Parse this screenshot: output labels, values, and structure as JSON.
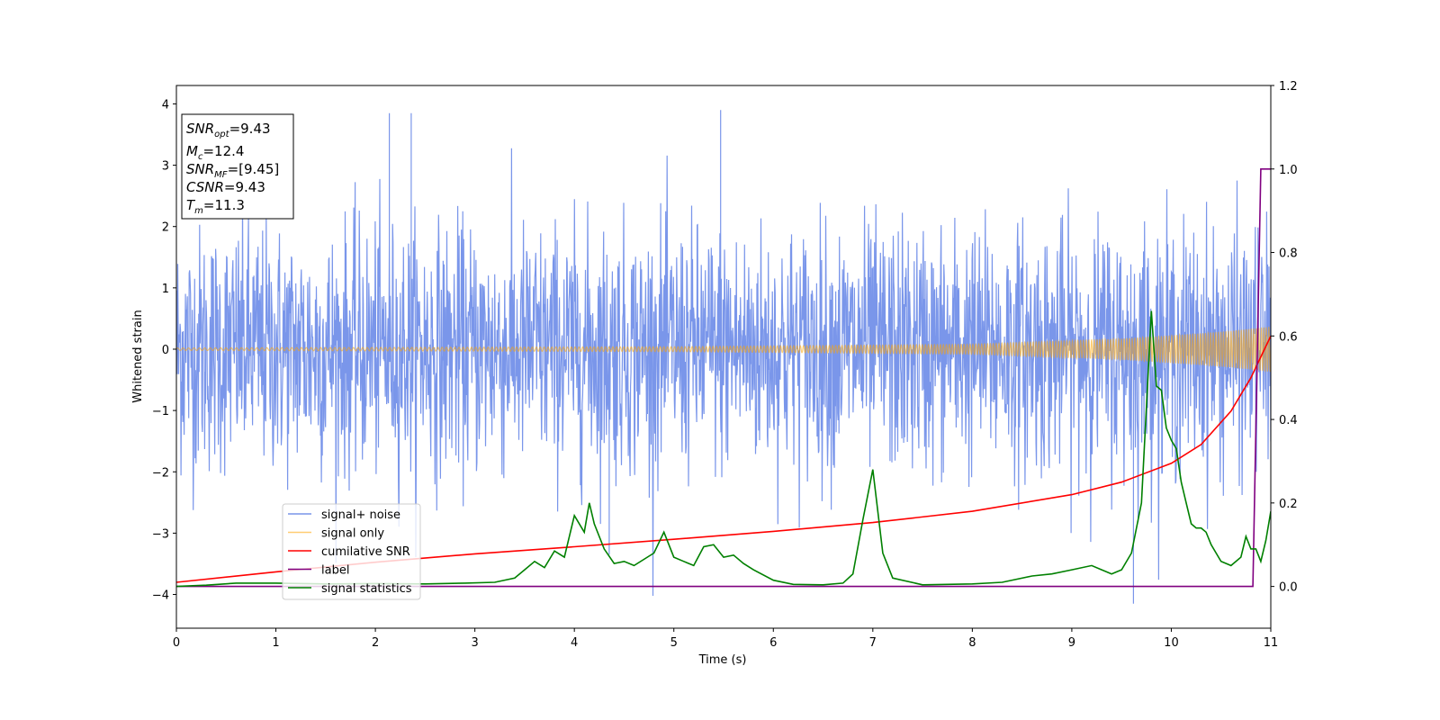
{
  "chart_data": {
    "type": "line",
    "xlabel": "Time (s)",
    "ylabel": "Whitened strain",
    "xlim": [
      0,
      11
    ],
    "ylim": [
      -4.55,
      4.3
    ],
    "y2lim": [
      -0.1,
      1.2
    ],
    "xticks": [
      0,
      1,
      2,
      3,
      4,
      5,
      6,
      7,
      8,
      9,
      10,
      11
    ],
    "yticks": [
      -4,
      -3,
      -2,
      -1,
      0,
      1,
      2,
      3,
      4
    ],
    "y2ticks": [
      "0.0",
      "0.2",
      "0.4",
      "0.6",
      "0.8",
      "1.0",
      "1.2"
    ],
    "legend_position": "lower-left",
    "grid": false,
    "info_box": [
      {
        "base": "SNR",
        "sub": "opt",
        "rest": "=9.43"
      },
      {
        "base": "M",
        "sub": "c",
        "rest": "=12.4"
      },
      {
        "base": "SNR",
        "sub": "MF",
        "rest": "=[9.45]"
      },
      {
        "base": "CSNR",
        "sub": "",
        "rest": "=9.43"
      },
      {
        "base": "T",
        "sub": "m",
        "rest": "=11.3"
      }
    ],
    "series": [
      {
        "name": "signal+ noise",
        "axis": "left",
        "color": "#4169e1",
        "kind": "noise",
        "sigma": 1.0,
        "approx_range": [
          -4.15,
          3.9
        ],
        "notable_extremes": [
          [
            5.47,
            3.9
          ],
          [
            2.14,
            3.85
          ],
          [
            2.36,
            3.85
          ],
          [
            9.62,
            -4.15
          ],
          [
            4.35,
            -3.35
          ]
        ]
      },
      {
        "name": "signal only",
        "axis": "left",
        "color": "#ffa500",
        "kind": "chirp",
        "amplitude_envelope": [
          [
            0,
            0.02
          ],
          [
            5,
            0.04
          ],
          [
            8,
            0.08
          ],
          [
            9.5,
            0.17
          ],
          [
            10.5,
            0.28
          ],
          [
            11,
            0.37
          ]
        ],
        "frequency_start": 18,
        "frequency_end": 40
      },
      {
        "name": "cumilative SNR",
        "axis": "right",
        "color": "#ff0000",
        "x": [
          0,
          1,
          2,
          3,
          4,
          5,
          6,
          7,
          8,
          9,
          9.5,
          10,
          10.3,
          10.6,
          10.8,
          11
        ],
        "values": [
          0.01,
          0.035,
          0.058,
          0.078,
          0.095,
          0.113,
          0.132,
          0.153,
          0.18,
          0.22,
          0.25,
          0.295,
          0.34,
          0.42,
          0.5,
          0.6
        ]
      },
      {
        "name": "label",
        "axis": "right",
        "color": "#800080",
        "x": [
          0,
          10.82,
          10.9,
          11
        ],
        "values": [
          0.0,
          0.0,
          1.0,
          1.0
        ]
      },
      {
        "name": "signal statistics",
        "axis": "right",
        "color": "#008000",
        "x": [
          0,
          0.3,
          0.6,
          1.0,
          1.5,
          2.0,
          2.5,
          2.9,
          3.2,
          3.4,
          3.5,
          3.6,
          3.7,
          3.8,
          3.9,
          4.0,
          4.1,
          4.15,
          4.2,
          4.3,
          4.4,
          4.5,
          4.6,
          4.8,
          4.9,
          5.0,
          5.1,
          5.2,
          5.3,
          5.4,
          5.5,
          5.6,
          5.7,
          5.8,
          6.0,
          6.2,
          6.5,
          6.7,
          6.8,
          6.9,
          7.0,
          7.1,
          7.2,
          7.5,
          8.0,
          8.3,
          8.6,
          8.8,
          9.0,
          9.2,
          9.3,
          9.4,
          9.5,
          9.6,
          9.7,
          9.8,
          9.85,
          9.9,
          9.95,
          10.0,
          10.05,
          10.1,
          10.15,
          10.2,
          10.25,
          10.3,
          10.35,
          10.4,
          10.5,
          10.6,
          10.7,
          10.75,
          10.8,
          10.85,
          10.9,
          10.95,
          11.0
        ],
        "values": [
          0.0,
          0.003,
          0.008,
          0.008,
          0.006,
          0.007,
          0.006,
          0.008,
          0.01,
          0.02,
          0.04,
          0.06,
          0.045,
          0.085,
          0.07,
          0.17,
          0.13,
          0.2,
          0.15,
          0.09,
          0.055,
          0.06,
          0.05,
          0.08,
          0.13,
          0.07,
          0.06,
          0.05,
          0.095,
          0.1,
          0.07,
          0.075,
          0.055,
          0.04,
          0.015,
          0.005,
          0.004,
          0.008,
          0.03,
          0.16,
          0.28,
          0.08,
          0.02,
          0.004,
          0.006,
          0.01,
          0.025,
          0.03,
          0.04,
          0.05,
          0.04,
          0.03,
          0.04,
          0.08,
          0.2,
          0.66,
          0.48,
          0.47,
          0.38,
          0.35,
          0.33,
          0.25,
          0.2,
          0.15,
          0.14,
          0.14,
          0.13,
          0.1,
          0.06,
          0.05,
          0.07,
          0.12,
          0.09,
          0.09,
          0.06,
          0.11,
          0.18
        ]
      }
    ]
  }
}
